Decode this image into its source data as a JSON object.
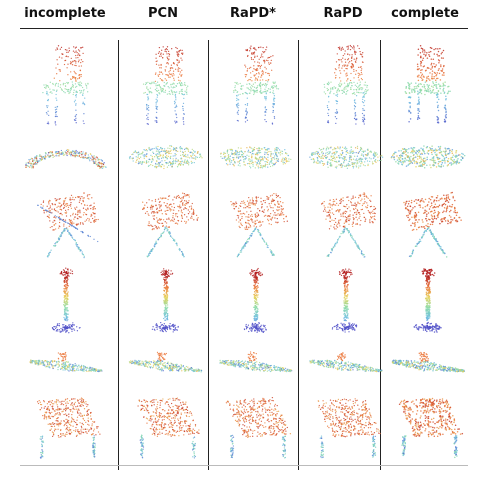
{
  "figure": {
    "columns": [
      {
        "id": "incomplete",
        "label": "incomplete"
      },
      {
        "id": "pcn",
        "label": "PCN"
      },
      {
        "id": "rapd-star",
        "label": "RaPD*"
      },
      {
        "id": "rapd",
        "label": "RaPD"
      },
      {
        "id": "complete",
        "label": "complete"
      }
    ],
    "rows": [
      {
        "id": "chair",
        "shape": "chair"
      },
      {
        "id": "car",
        "shape": "car"
      },
      {
        "id": "table",
        "shape": "table"
      },
      {
        "id": "lamp",
        "shape": "lamp"
      },
      {
        "id": "watercraft",
        "shape": "boat"
      },
      {
        "id": "cabinet",
        "shape": "cabinet"
      }
    ]
  }
}
